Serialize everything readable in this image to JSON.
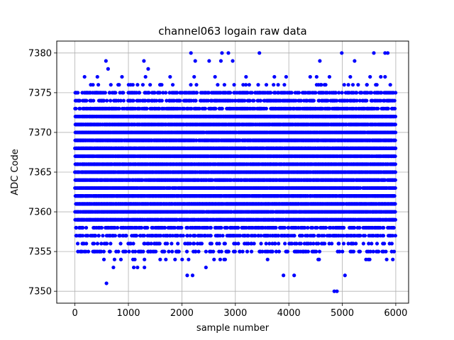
{
  "chart_data": {
    "type": "scatter",
    "title": "channel063 logain raw data",
    "xlabel": "sample number",
    "ylabel": "ADC Code",
    "xlim": [
      -340,
      6240
    ],
    "ylim": [
      7348.5,
      7381.5
    ],
    "xticks": [
      0,
      1000,
      2000,
      3000,
      4000,
      5000,
      6000
    ],
    "yticks": [
      7350,
      7355,
      7360,
      7365,
      7370,
      7375,
      7380
    ],
    "grid": true,
    "marker_color": "#0000ff",
    "series": [
      {
        "n_samples": 6000,
        "x_start": 0,
        "x_step": 1,
        "core_levels": [
          7359,
          7360,
          7361,
          7362,
          7363,
          7364,
          7365,
          7366,
          7367,
          7368,
          7369,
          7370,
          7371,
          7372
        ],
        "sparse_levels": [
          7355,
          7356,
          7357,
          7358,
          7373,
          7374,
          7375
        ],
        "outliers": [
          [
            590,
            7351
          ],
          [
            720,
            7353
          ],
          [
            740,
            7354
          ],
          [
            1100,
            7353
          ],
          [
            1170,
            7353
          ],
          [
            1300,
            7353
          ],
          [
            2100,
            7352
          ],
          [
            2200,
            7352
          ],
          [
            2450,
            7353
          ],
          [
            3900,
            7352
          ],
          [
            4100,
            7352
          ],
          [
            4850,
            7350
          ],
          [
            4900,
            7350
          ],
          [
            5050,
            7352
          ],
          [
            180,
            7377
          ],
          [
            420,
            7377
          ],
          [
            620,
            7378
          ],
          [
            880,
            7377
          ],
          [
            1320,
            7377
          ],
          [
            1370,
            7378
          ],
          [
            1780,
            7377
          ],
          [
            2230,
            7377
          ],
          [
            2620,
            7377
          ],
          [
            3200,
            7377
          ],
          [
            3730,
            7377
          ],
          [
            3950,
            7377
          ],
          [
            4400,
            7377
          ],
          [
            4520,
            7377
          ],
          [
            4760,
            7377
          ],
          [
            5150,
            7377
          ],
          [
            5520,
            7377
          ],
          [
            5720,
            7377
          ],
          [
            5800,
            7377
          ],
          [
            580,
            7379
          ],
          [
            1290,
            7379
          ],
          [
            2250,
            7379
          ],
          [
            2510,
            7379
          ],
          [
            2730,
            7379
          ],
          [
            2950,
            7379
          ],
          [
            4580,
            7379
          ],
          [
            5230,
            7379
          ],
          [
            2170,
            7380
          ],
          [
            2750,
            7380
          ],
          [
            2870,
            7380
          ],
          [
            3450,
            7380
          ],
          [
            4990,
            7380
          ],
          [
            5590,
            7380
          ],
          [
            5800,
            7380
          ],
          [
            5850,
            7380
          ]
        ]
      }
    ]
  }
}
